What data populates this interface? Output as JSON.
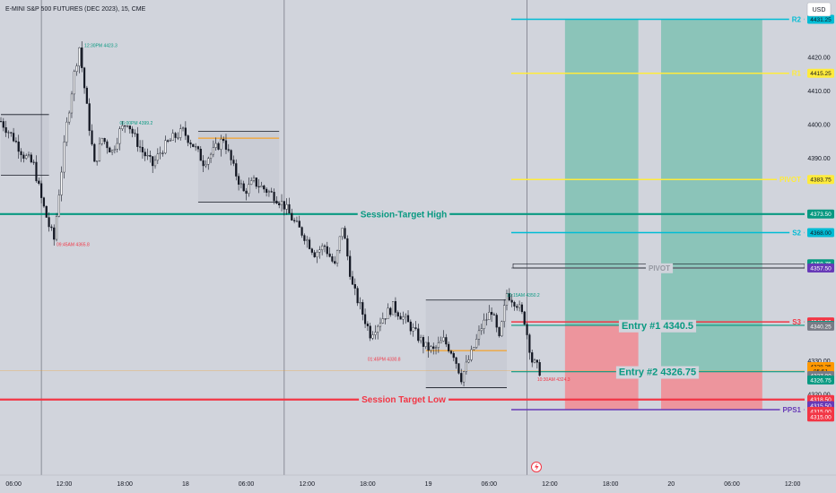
{
  "header": {
    "title": "E-MINI S&P 500 FUTURES (DEC 2023), 15, CME"
  },
  "currency_button": {
    "label": "USD"
  },
  "colors": {
    "background": "#d1d4dc",
    "up": "#131722",
    "down": "#131722",
    "session_high": "#089981",
    "session_low": "#f23645",
    "r2": "#00bcd4",
    "r1": "#ffeb3b",
    "s2": "#00bcd4",
    "s3": "#f23645",
    "pivot": "#9598a1",
    "pps1": "#673ab7",
    "reward": "#7fc1b3",
    "risk": "#ef8e96"
  },
  "chart_data": {
    "type": "candlestick",
    "title": "E-MINI S&P 500 FUTURES (DEC 2023), 15, CME",
    "currency": "USD",
    "ylim": [
      4309,
      4433
    ],
    "y_ticks": [
      4420,
      4410,
      4400,
      4390,
      4330,
      4320
    ],
    "x_ticks": [
      {
        "t": 5,
        "label": "06:00"
      },
      {
        "t": 25,
        "label": "12:00"
      },
      {
        "t": 49,
        "label": "18:00"
      },
      {
        "t": 73,
        "label": "18"
      },
      {
        "t": 97,
        "label": "06:00"
      },
      {
        "t": 121,
        "label": "12:00"
      },
      {
        "t": 145,
        "label": "18:00"
      },
      {
        "t": 169,
        "label": "19"
      },
      {
        "t": 193,
        "label": "06:00"
      },
      {
        "t": 217,
        "label": "12:00"
      },
      {
        "t": 241,
        "label": "18:00"
      },
      {
        "t": 265,
        "label": "20"
      },
      {
        "t": 289,
        "label": "06:00"
      },
      {
        "t": 313,
        "label": "12:00"
      }
    ],
    "session_separators": [
      16,
      112,
      208
    ],
    "anchors": [
      {
        "t": 0,
        "v": 4401
      },
      {
        "t": 5,
        "v": 4396
      },
      {
        "t": 9,
        "v": 4391
      },
      {
        "t": 13,
        "v": 4388
      },
      {
        "t": 16,
        "v": 4378
      },
      {
        "t": 19,
        "v": 4370
      },
      {
        "t": 21,
        "v": 4366
      },
      {
        "t": 23,
        "v": 4380
      },
      {
        "t": 26,
        "v": 4400
      },
      {
        "t": 29,
        "v": 4415
      },
      {
        "t": 31,
        "v": 4423
      },
      {
        "t": 34,
        "v": 4405
      },
      {
        "t": 37,
        "v": 4388
      },
      {
        "t": 40,
        "v": 4396
      },
      {
        "t": 44,
        "v": 4392
      },
      {
        "t": 47,
        "v": 4398
      },
      {
        "t": 50,
        "v": 4401
      },
      {
        "t": 53,
        "v": 4396
      },
      {
        "t": 56,
        "v": 4392
      },
      {
        "t": 60,
        "v": 4388
      },
      {
        "t": 64,
        "v": 4393
      },
      {
        "t": 68,
        "v": 4396
      },
      {
        "t": 72,
        "v": 4398
      },
      {
        "t": 76,
        "v": 4394
      },
      {
        "t": 80,
        "v": 4389
      },
      {
        "t": 84,
        "v": 4392
      },
      {
        "t": 88,
        "v": 4396
      },
      {
        "t": 92,
        "v": 4387
      },
      {
        "t": 96,
        "v": 4380
      },
      {
        "t": 100,
        "v": 4383
      },
      {
        "t": 104,
        "v": 4381
      },
      {
        "t": 108,
        "v": 4379
      },
      {
        "t": 112,
        "v": 4376
      },
      {
        "t": 116,
        "v": 4371
      },
      {
        "t": 120,
        "v": 4367
      },
      {
        "t": 124,
        "v": 4362
      },
      {
        "t": 128,
        "v": 4364
      },
      {
        "t": 132,
        "v": 4358
      },
      {
        "t": 135,
        "v": 4370
      },
      {
        "t": 139,
        "v": 4352
      },
      {
        "t": 143,
        "v": 4344
      },
      {
        "t": 146,
        "v": 4338
      },
      {
        "t": 150,
        "v": 4342
      },
      {
        "t": 155,
        "v": 4346
      },
      {
        "t": 160,
        "v": 4342
      },
      {
        "t": 164,
        "v": 4338
      },
      {
        "t": 168,
        "v": 4334
      },
      {
        "t": 171,
        "v": 4333
      },
      {
        "t": 175,
        "v": 4336
      },
      {
        "t": 179,
        "v": 4332
      },
      {
        "t": 182,
        "v": 4325
      },
      {
        "t": 186,
        "v": 4332
      },
      {
        "t": 190,
        "v": 4340
      },
      {
        "t": 194,
        "v": 4345
      },
      {
        "t": 197,
        "v": 4336
      },
      {
        "t": 200,
        "v": 4350
      },
      {
        "t": 204,
        "v": 4347
      },
      {
        "t": 207,
        "v": 4342
      },
      {
        "t": 210,
        "v": 4330
      },
      {
        "t": 213,
        "v": 4327
      }
    ],
    "last_price": 4327.0,
    "countdown": "05:51",
    "levels": [
      {
        "name": "R2",
        "value": 4431.25,
        "label": "R2",
        "color": "#00bcd4"
      },
      {
        "name": "R1",
        "value": 4415.25,
        "label": "R1",
        "color": "#ffeb3b"
      },
      {
        "name": "pivot-high",
        "value": 4383.75,
        "label": "PIVOT",
        "color": "#ffeb3b"
      },
      {
        "name": "session-target-high",
        "value": 4373.5,
        "label": "Session-Target High",
        "color": "#089981"
      },
      {
        "name": "S2",
        "value": 4368.0,
        "label": "S2",
        "color": "#00bcd4"
      },
      {
        "name": "pivot",
        "value": 4357.5,
        "label": "PIVOT",
        "color": "#9598a1"
      },
      {
        "name": "S3",
        "value": 4341.5,
        "label": "S3",
        "color": "#f23645"
      },
      {
        "name": "entry-1",
        "value": 4340.5,
        "label": "Entry #1 4340.5",
        "color": "#089981"
      },
      {
        "name": "entry-2",
        "value": 4326.75,
        "label": "Entry #2 4326.75",
        "color": "#089981"
      },
      {
        "name": "session-target-low",
        "value": 4318.5,
        "label": "Session Target Low",
        "color": "#f23645"
      },
      {
        "name": "PPS1",
        "value": 4315.5,
        "label": "PPS1",
        "color": "#673ab7"
      }
    ],
    "price_tags": [
      {
        "label": "4431.25",
        "value": 4431.25,
        "bg": "#00bcd4",
        "fg": "#131722"
      },
      {
        "label": "4415.25",
        "value": 4415.25,
        "bg": "#ffeb3b",
        "fg": "#131722"
      },
      {
        "label": "4383.75",
        "value": 4383.75,
        "bg": "#ffeb3b",
        "fg": "#131722"
      },
      {
        "label": "4373.50",
        "value": 4373.5,
        "bg": "#089981",
        "fg": "#ffffff"
      },
      {
        "label": "4368.00",
        "value": 4368.0,
        "bg": "#00bcd4",
        "fg": "#131722"
      },
      {
        "label": "4358.75",
        "value": 4358.75,
        "bg": "#089981",
        "fg": "#ffffff"
      },
      {
        "label": "4357.50",
        "value": 4357.5,
        "bg": "#673ab7",
        "fg": "#ffffff"
      },
      {
        "label": "4341.50",
        "value": 4341.5,
        "bg": "#f23645",
        "fg": "#ffffff"
      },
      {
        "label": "4340.50",
        "value": 4340.5,
        "bg": "#089981",
        "fg": "#ffffff"
      },
      {
        "label": "4340.25",
        "value": 4340.25,
        "bg": "#787b86",
        "fg": "#ffffff"
      },
      {
        "label": "4328.25",
        "value": 4328.25,
        "bg": "#ff9800",
        "fg": "#131722"
      },
      {
        "label": "05:51",
        "value": 4326.9,
        "bg": "#ff9800",
        "fg": "#131722"
      },
      {
        "label": "4327.00",
        "value": 4325.6,
        "bg": "#787b86",
        "fg": "#ffffff"
      },
      {
        "label": "4326.75",
        "value": 4324.3,
        "bg": "#089981",
        "fg": "#ffffff"
      },
      {
        "label": "4318.50",
        "value": 4318.5,
        "bg": "#f23645",
        "fg": "#ffffff"
      },
      {
        "label": "4315.50",
        "value": 4316.7,
        "bg": "#673ab7",
        "fg": "#ffffff"
      },
      {
        "label": "4315.00",
        "value": 4315.0,
        "bg": "#f23645",
        "fg": "#ffffff"
      },
      {
        "label": "4315.00",
        "value": 4313.3,
        "bg": "#f23645",
        "fg": "#ffffff"
      }
    ],
    "annotations": [
      {
        "text": "12:30PM 4423.3",
        "t": 33,
        "v": 4423,
        "color": "#089981"
      },
      {
        "text": "06:00PM 4399.2",
        "t": 47,
        "v": 4400,
        "color": "#089981"
      },
      {
        "text": "09:45AM 4365.8",
        "t": 22,
        "v": 4364,
        "color": "#f23645"
      },
      {
        "text": "01:45PM 4330.8",
        "t": 145,
        "v": 4330,
        "color": "#f23645"
      },
      {
        "text": "10:15AM 4350.2",
        "t": 200,
        "v": 4349,
        "color": "#089981"
      },
      {
        "text": "10:30AM 4324.3",
        "t": 212,
        "v": 4324,
        "color": "#f23645"
      }
    ],
    "position_boxes": [
      {
        "t0": 223,
        "t1": 252,
        "target": 4431.25,
        "entry": 4340.5,
        "stop": 4315.5
      },
      {
        "t0": 261,
        "t1": 301,
        "target": 4431.25,
        "entry": 4326.75,
        "stop": 4315.5
      }
    ]
  }
}
